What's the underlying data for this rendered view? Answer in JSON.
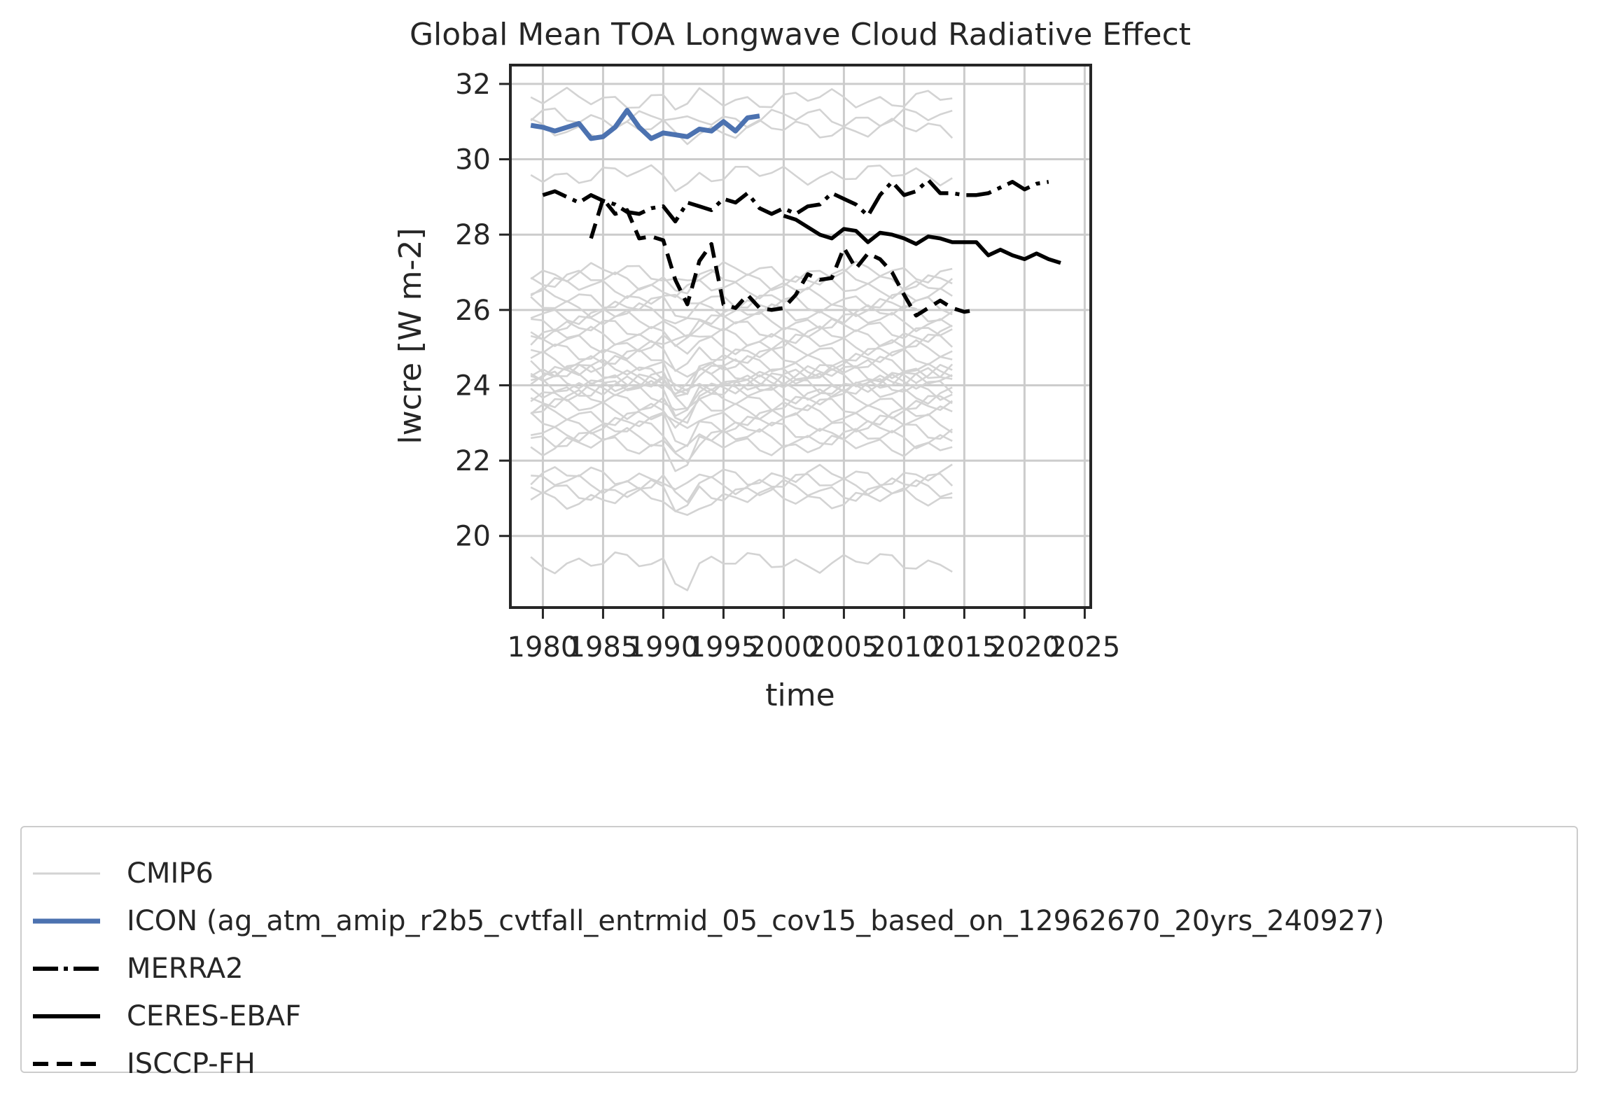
{
  "chart_data": {
    "type": "line",
    "title": "Global Mean TOA Longwave Cloud Radiative Effect",
    "xlabel": "time",
    "ylabel": "lwcre [W m-2]",
    "xlim": [
      1977.3,
      2025.5
    ],
    "ylim": [
      18.1,
      32.5
    ],
    "xticks": [
      1980,
      1985,
      1990,
      1995,
      2000,
      2005,
      2010,
      2015,
      2020,
      2025
    ],
    "xtick_labels": [
      "1980",
      "1985",
      "1990",
      "1995",
      "2000",
      "2005",
      "2010",
      "2015",
      "2020",
      "2025"
    ],
    "yticks": [
      20,
      22,
      24,
      26,
      28,
      30,
      32
    ],
    "ytick_labels": [
      "20",
      "22",
      "24",
      "26",
      "28",
      "30",
      "32"
    ],
    "grid": true,
    "legend_position": "below",
    "cmip6_years": [
      1979,
      2014
    ],
    "cmip6_levels": [
      31.6,
      31.1,
      30.8,
      29.6,
      27.0,
      26.8,
      26.6,
      26.3,
      26.1,
      25.9,
      25.7,
      25.5,
      25.3,
      25.1,
      24.9,
      24.7,
      24.5,
      24.4,
      24.3,
      24.2,
      24.1,
      24.0,
      23.9,
      23.8,
      23.6,
      23.4,
      23.2,
      23.0,
      22.8,
      22.6,
      22.4,
      21.6,
      21.4,
      21.2,
      21.0,
      19.3
    ],
    "series": [
      {
        "name": "CMIP6",
        "style": "thin",
        "color": "#d3d3d3",
        "x": [],
        "y": []
      },
      {
        "name": "ICON (ag_atm_amip_r2b5_cvtfall_entrmid_05_cov15_based_on_12962670_20yrs_240927)",
        "style": "solid-thick",
        "color": "#4c72b0",
        "x": [
          1979,
          1980,
          1981,
          1982,
          1983,
          1984,
          1985,
          1986,
          1987,
          1988,
          1989,
          1990,
          1991,
          1992,
          1993,
          1994,
          1995,
          1996,
          1997,
          1998
        ],
        "y": [
          30.9,
          30.85,
          30.75,
          30.85,
          30.95,
          30.55,
          30.6,
          30.85,
          31.3,
          30.85,
          30.55,
          30.7,
          30.65,
          30.6,
          30.8,
          30.75,
          31.0,
          30.75,
          31.1,
          31.15
        ]
      },
      {
        "name": "MERRA2",
        "style": "dashdot",
        "color": "#000000",
        "x": [
          1980,
          1981,
          1982,
          1983,
          1984,
          1985,
          1986,
          1987,
          1988,
          1989,
          1990,
          1991,
          1992,
          1993,
          1994,
          1995,
          1996,
          1997,
          1998,
          1999,
          2000,
          2001,
          2002,
          2003,
          2004,
          2005,
          2006,
          2007,
          2008,
          2009,
          2010,
          2011,
          2012,
          2013,
          2014,
          2015,
          2016,
          2017,
          2018,
          2019,
          2020,
          2021,
          2022
        ],
        "y": [
          29.05,
          29.15,
          29.0,
          28.85,
          29.05,
          28.9,
          28.8,
          28.6,
          28.55,
          28.7,
          28.75,
          28.35,
          28.85,
          28.75,
          28.65,
          28.95,
          28.85,
          29.1,
          28.7,
          28.55,
          28.7,
          28.55,
          28.75,
          28.8,
          29.1,
          28.95,
          28.8,
          28.5,
          29.05,
          29.4,
          29.05,
          29.15,
          29.45,
          29.1,
          29.1,
          29.05,
          29.05,
          29.1,
          29.25,
          29.4,
          29.2,
          29.35,
          29.4
        ]
      },
      {
        "name": "CERES-EBAF",
        "style": "solid",
        "color": "#000000",
        "x": [
          2000,
          2001,
          2002,
          2003,
          2004,
          2005,
          2006,
          2007,
          2008,
          2009,
          2010,
          2011,
          2012,
          2013,
          2014,
          2015,
          2016,
          2017,
          2018,
          2019,
          2020,
          2021,
          2022,
          2023
        ],
        "y": [
          28.5,
          28.4,
          28.2,
          28.0,
          27.9,
          28.15,
          28.1,
          27.8,
          28.05,
          28.0,
          27.9,
          27.75,
          27.95,
          27.9,
          27.8,
          27.8,
          27.8,
          27.45,
          27.6,
          27.45,
          27.35,
          27.5,
          27.35,
          27.25
        ]
      },
      {
        "name": "ISCCP-FH",
        "style": "dashed",
        "color": "#000000",
        "x": [
          1984,
          1985,
          1986,
          1987,
          1988,
          1989,
          1990,
          1991,
          1992,
          1993,
          1994,
          1995,
          1996,
          1997,
          1998,
          1999,
          2000,
          2001,
          2002,
          2003,
          2004,
          2005,
          2006,
          2007,
          2008,
          2009,
          2010,
          2011,
          2012,
          2013,
          2014,
          2015,
          2016
        ],
        "y": [
          27.9,
          28.95,
          28.55,
          28.65,
          27.9,
          27.95,
          27.85,
          26.8,
          26.15,
          27.3,
          27.75,
          26.15,
          26.05,
          26.4,
          26.05,
          26.0,
          26.05,
          26.4,
          26.95,
          26.8,
          26.85,
          27.65,
          27.1,
          27.5,
          27.35,
          27.0,
          26.4,
          25.85,
          26.05,
          26.25,
          26.05,
          25.95,
          26.0
        ]
      }
    ]
  }
}
